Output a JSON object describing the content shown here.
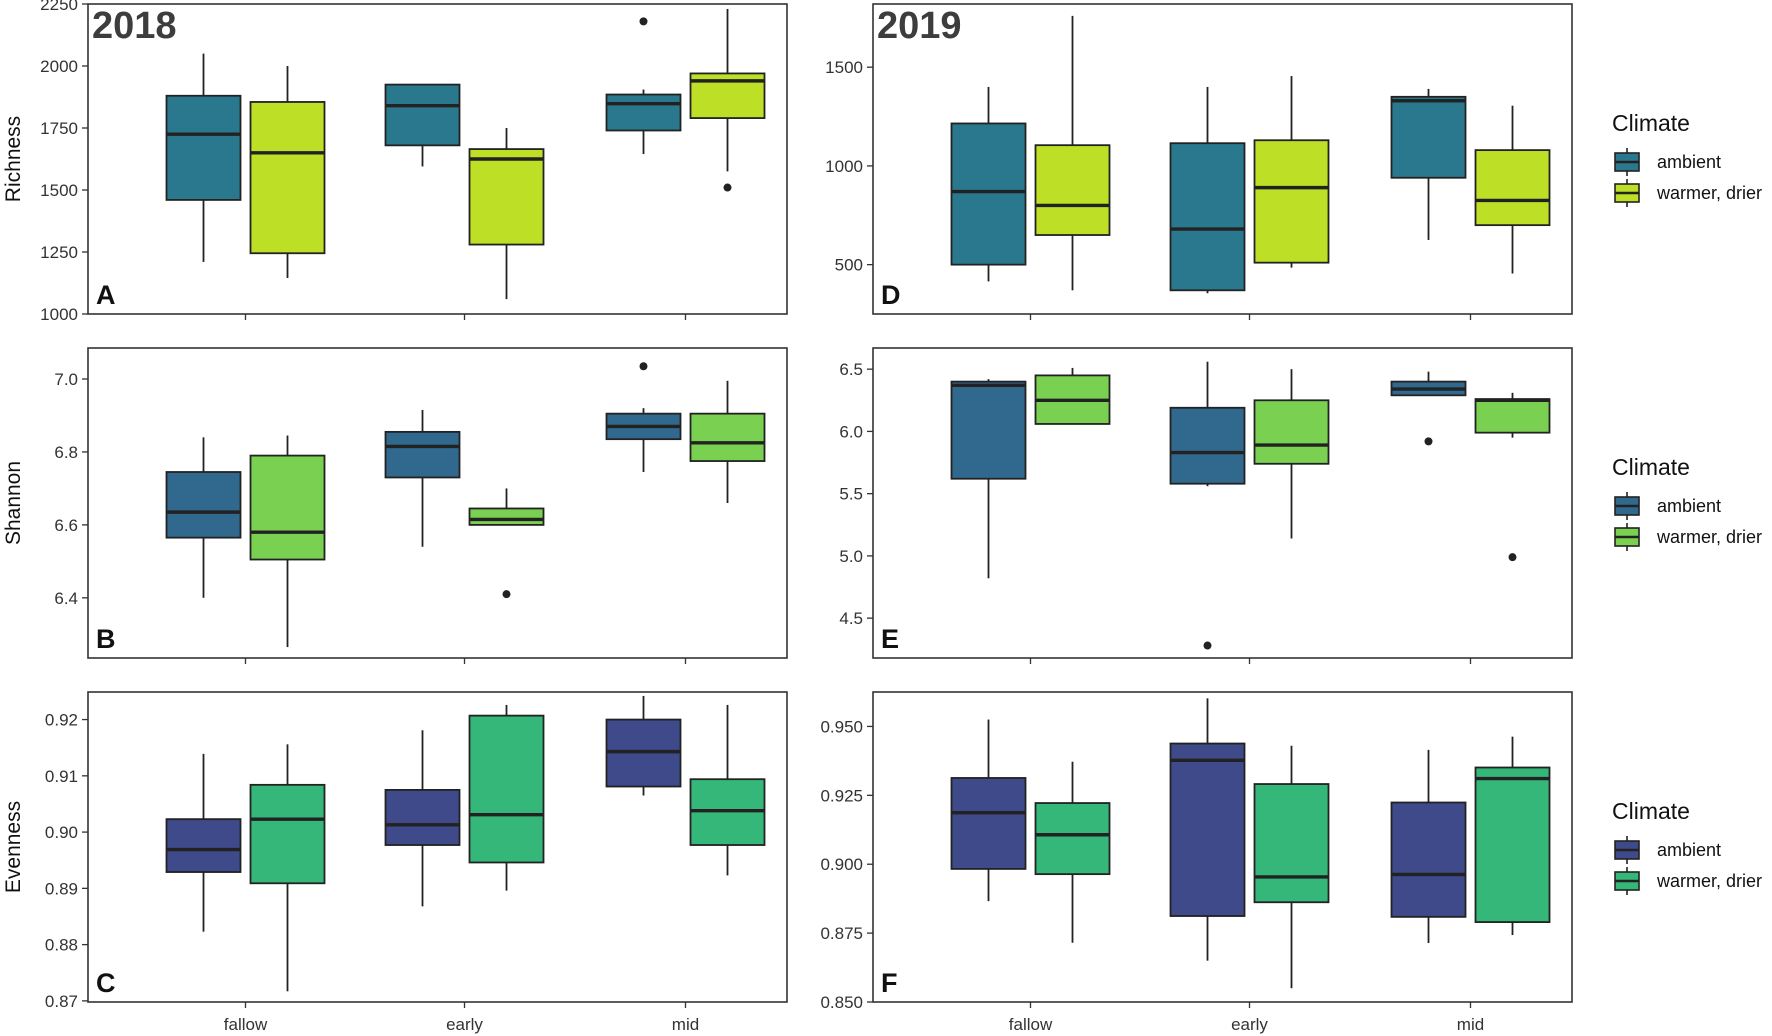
{
  "chart_data": [
    {
      "id": "A",
      "type": "box",
      "panel_label": "A",
      "year_label": "2018",
      "ylabel": "Richness",
      "ylim": [
        1000,
        2250
      ],
      "yticks": [
        1000,
        1250,
        1500,
        1750,
        2000,
        2250
      ],
      "yticklabels": [
        "1000",
        "1250",
        "1500",
        "1750",
        "2000",
        "2250"
      ],
      "categories": [
        "fallow",
        "early",
        "mid"
      ],
      "show_xlabels": false,
      "colors": {
        "ambient": "#2a788e",
        "warmer": "#bddf26"
      },
      "boxes": [
        {
          "category": "fallow",
          "series": "ambient",
          "min": 1210,
          "q1": 1460,
          "median": 1725,
          "q3": 1880,
          "max": 2050,
          "outliers": []
        },
        {
          "category": "fallow",
          "series": "warmer, drier",
          "min": 1145,
          "q1": 1245,
          "median": 1650,
          "q3": 1855,
          "max": 2000,
          "outliers": []
        },
        {
          "category": "early",
          "series": "ambient",
          "min": 1595,
          "q1": 1680,
          "median": 1840,
          "q3": 1925,
          "max": 1925,
          "outliers": []
        },
        {
          "category": "early",
          "series": "warmer, drier",
          "min": 1060,
          "q1": 1280,
          "median": 1625,
          "q3": 1665,
          "max": 1750,
          "outliers": []
        },
        {
          "category": "mid",
          "series": "ambient",
          "min": 1645,
          "q1": 1740,
          "median": 1848,
          "q3": 1885,
          "max": 1905,
          "outliers": [
            2180
          ]
        },
        {
          "category": "mid",
          "series": "warmer, drier",
          "min": 1575,
          "q1": 1790,
          "median": 1940,
          "q3": 1970,
          "max": 2230,
          "outliers": [
            1510
          ]
        }
      ]
    },
    {
      "id": "D",
      "type": "box",
      "panel_label": "D",
      "year_label": "2019",
      "ylabel": "",
      "ylim": [
        250,
        1820
      ],
      "yticks": [
        500,
        1000,
        1500
      ],
      "yticklabels": [
        "500",
        "1000",
        "1500"
      ],
      "categories": [
        "fallow",
        "early",
        "mid"
      ],
      "show_xlabels": false,
      "colors": {
        "ambient": "#2a788e",
        "warmer": "#bddf26"
      },
      "boxes": [
        {
          "category": "fallow",
          "series": "ambient",
          "min": 415,
          "q1": 500,
          "median": 870,
          "q3": 1215,
          "max": 1400,
          "outliers": []
        },
        {
          "category": "fallow",
          "series": "warmer, drier",
          "min": 370,
          "q1": 650,
          "median": 800,
          "q3": 1105,
          "max": 1760,
          "outliers": []
        },
        {
          "category": "early",
          "series": "ambient",
          "min": 355,
          "q1": 370,
          "median": 680,
          "q3": 1115,
          "max": 1400,
          "outliers": []
        },
        {
          "category": "early",
          "series": "warmer, drier",
          "min": 485,
          "q1": 510,
          "median": 890,
          "q3": 1130,
          "max": 1455,
          "outliers": []
        },
        {
          "category": "mid",
          "series": "ambient",
          "min": 625,
          "q1": 940,
          "median": 1330,
          "q3": 1350,
          "max": 1390,
          "outliers": []
        },
        {
          "category": "mid",
          "series": "warmer, drier",
          "min": 455,
          "q1": 700,
          "median": 825,
          "q3": 1080,
          "max": 1305,
          "outliers": []
        }
      ]
    },
    {
      "id": "B",
      "type": "box",
      "panel_label": "B",
      "year_label": "",
      "ylabel": "Shannon",
      "ylim": [
        6.235,
        7.085
      ],
      "yticks": [
        6.4,
        6.6,
        6.8,
        7.0
      ],
      "yticklabels": [
        "6.4",
        "6.6",
        "6.8",
        "7.0"
      ],
      "categories": [
        "fallow",
        "early",
        "mid"
      ],
      "show_xlabels": false,
      "colors": {
        "ambient": "#31688e",
        "warmer": "#7ad151"
      },
      "boxes": [
        {
          "category": "fallow",
          "series": "ambient",
          "min": 6.4,
          "q1": 6.565,
          "median": 6.635,
          "q3": 6.745,
          "max": 6.84,
          "outliers": []
        },
        {
          "category": "fallow",
          "series": "warmer, drier",
          "min": 6.265,
          "q1": 6.505,
          "median": 6.58,
          "q3": 6.79,
          "max": 6.845,
          "outliers": []
        },
        {
          "category": "early",
          "series": "ambient",
          "min": 6.54,
          "q1": 6.73,
          "median": 6.815,
          "q3": 6.855,
          "max": 6.915,
          "outliers": []
        },
        {
          "category": "early",
          "series": "warmer, drier",
          "min": 6.6,
          "q1": 6.6,
          "median": 6.615,
          "q3": 6.645,
          "max": 6.7,
          "outliers": [
            6.41
          ]
        },
        {
          "category": "mid",
          "series": "ambient",
          "min": 6.745,
          "q1": 6.835,
          "median": 6.87,
          "q3": 6.905,
          "max": 6.92,
          "outliers": [
            7.035
          ]
        },
        {
          "category": "mid",
          "series": "warmer, drier",
          "min": 6.66,
          "q1": 6.775,
          "median": 6.825,
          "q3": 6.905,
          "max": 6.995,
          "outliers": []
        }
      ]
    },
    {
      "id": "E",
      "type": "box",
      "panel_label": "E",
      "year_label": "",
      "ylabel": "",
      "ylim": [
        4.18,
        6.67
      ],
      "yticks": [
        4.5,
        5.0,
        5.5,
        6.0,
        6.5
      ],
      "yticklabels": [
        "4.5",
        "5.0",
        "5.5",
        "6.0",
        "6.5"
      ],
      "categories": [
        "fallow",
        "early",
        "mid"
      ],
      "show_xlabels": false,
      "colors": {
        "ambient": "#31688e",
        "warmer": "#7ad151"
      },
      "boxes": [
        {
          "category": "fallow",
          "series": "ambient",
          "min": 4.82,
          "q1": 5.62,
          "median": 6.37,
          "q3": 6.4,
          "max": 6.42,
          "outliers": []
        },
        {
          "category": "fallow",
          "series": "warmer, drier",
          "min": 6.06,
          "q1": 6.06,
          "median": 6.25,
          "q3": 6.45,
          "max": 6.51,
          "outliers": []
        },
        {
          "category": "early",
          "series": "ambient",
          "min": 5.56,
          "q1": 5.58,
          "median": 5.83,
          "q3": 6.19,
          "max": 6.56,
          "outliers": [
            4.28
          ]
        },
        {
          "category": "early",
          "series": "warmer, drier",
          "min": 5.14,
          "q1": 5.74,
          "median": 5.89,
          "q3": 6.25,
          "max": 6.5,
          "outliers": []
        },
        {
          "category": "mid",
          "series": "ambient",
          "min": 6.29,
          "q1": 6.29,
          "median": 6.34,
          "q3": 6.4,
          "max": 6.48,
          "outliers": [
            5.92
          ]
        },
        {
          "category": "mid",
          "series": "warmer, drier",
          "min": 5.95,
          "q1": 5.99,
          "median": 6.25,
          "q3": 6.26,
          "max": 6.31,
          "outliers": [
            4.99
          ]
        }
      ]
    },
    {
      "id": "C",
      "type": "box",
      "panel_label": "C",
      "year_label": "",
      "ylabel": "Evenness",
      "ylim": [
        0.8698,
        0.9249
      ],
      "yticks": [
        0.87,
        0.88,
        0.89,
        0.9,
        0.91,
        0.92
      ],
      "yticklabels": [
        "0.87",
        "0.88",
        "0.89",
        "0.90",
        "0.91",
        "0.92"
      ],
      "categories": [
        "fallow",
        "early",
        "mid"
      ],
      "show_xlabels": true,
      "colors": {
        "ambient": "#3e4a89",
        "warmer": "#35b779"
      },
      "boxes": [
        {
          "category": "fallow",
          "series": "ambient",
          "min": 0.8823,
          "q1": 0.8929,
          "median": 0.8969,
          "q3": 0.9023,
          "max": 0.9139,
          "outliers": []
        },
        {
          "category": "fallow",
          "series": "warmer, drier",
          "min": 0.8717,
          "q1": 0.8909,
          "median": 0.9023,
          "q3": 0.9084,
          "max": 0.9156,
          "outliers": []
        },
        {
          "category": "early",
          "series": "ambient",
          "min": 0.8868,
          "q1": 0.8977,
          "median": 0.9013,
          "q3": 0.9075,
          "max": 0.9181,
          "outliers": []
        },
        {
          "category": "early",
          "series": "warmer, drier",
          "min": 0.8896,
          "q1": 0.8946,
          "median": 0.9031,
          "q3": 0.9207,
          "max": 0.9226,
          "outliers": []
        },
        {
          "category": "mid",
          "series": "ambient",
          "min": 0.9065,
          "q1": 0.9081,
          "median": 0.9143,
          "q3": 0.92,
          "max": 0.9242,
          "outliers": []
        },
        {
          "category": "mid",
          "series": "warmer, drier",
          "min": 0.8923,
          "q1": 0.8977,
          "median": 0.9038,
          "q3": 0.9094,
          "max": 0.9226,
          "outliers": []
        }
      ]
    },
    {
      "id": "F",
      "type": "box",
      "panel_label": "F",
      "year_label": "",
      "ylabel": "",
      "ylim": [
        0.85,
        0.9625
      ],
      "yticks": [
        0.85,
        0.875,
        0.9,
        0.925,
        0.95
      ],
      "yticklabels": [
        "0.850",
        "0.875",
        "0.900",
        "0.925",
        "0.950"
      ],
      "categories": [
        "fallow",
        "early",
        "mid"
      ],
      "show_xlabels": true,
      "colors": {
        "ambient": "#3e4a89",
        "warmer": "#35b779"
      },
      "boxes": [
        {
          "category": "fallow",
          "series": "ambient",
          "min": 0.8866,
          "q1": 0.8983,
          "median": 0.9187,
          "q3": 0.9313,
          "max": 0.9525,
          "outliers": []
        },
        {
          "category": "fallow",
          "series": "warmer, drier",
          "min": 0.8715,
          "q1": 0.8964,
          "median": 0.9107,
          "q3": 0.9222,
          "max": 0.9372,
          "outliers": []
        },
        {
          "category": "early",
          "series": "ambient",
          "min": 0.865,
          "q1": 0.8812,
          "median": 0.9377,
          "q3": 0.9438,
          "max": 0.9602,
          "outliers": []
        },
        {
          "category": "early",
          "series": "warmer, drier",
          "min": 0.855,
          "q1": 0.8862,
          "median": 0.8954,
          "q3": 0.9291,
          "max": 0.943,
          "outliers": []
        },
        {
          "category": "mid",
          "series": "ambient",
          "min": 0.8714,
          "q1": 0.8809,
          "median": 0.8963,
          "q3": 0.9224,
          "max": 0.9415,
          "outliers": []
        },
        {
          "category": "mid",
          "series": "warmer, drier",
          "min": 0.8743,
          "q1": 0.879,
          "median": 0.9311,
          "q3": 0.9351,
          "max": 0.9463,
          "outliers": []
        }
      ]
    }
  ],
  "legends": [
    {
      "title": "Climate",
      "entries": [
        {
          "label": "ambient",
          "color": "#2a788e"
        },
        {
          "label": "warmer, drier",
          "color": "#bddf26"
        }
      ]
    },
    {
      "title": "Climate",
      "entries": [
        {
          "label": "ambient",
          "color": "#31688e"
        },
        {
          "label": "warmer, drier",
          "color": "#7ad151"
        }
      ]
    },
    {
      "title": "Climate",
      "entries": [
        {
          "label": "ambient",
          "color": "#3e4a89"
        },
        {
          "label": "warmer, drier",
          "color": "#35b779"
        }
      ]
    }
  ]
}
